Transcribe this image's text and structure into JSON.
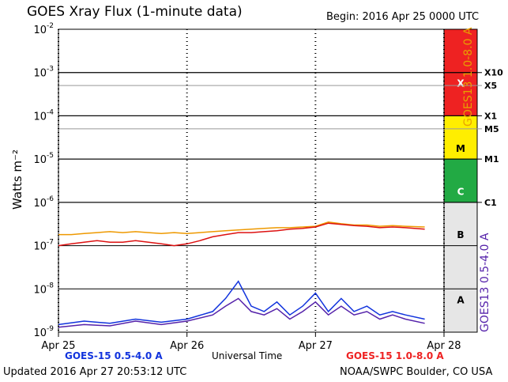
{
  "header": {
    "title": "GOES Xray Flux (1-minute data)",
    "begin": "Begin:  2016 Apr 25 0000 UTC"
  },
  "footer": {
    "updated": "Updated 2016 Apr 27 20:53:12 UTC",
    "credit": "NOAA/SWPC Boulder, CO USA",
    "xlabel": "Universal Time",
    "legend_short": "GOES-15 0.5-4.0 A",
    "legend_long": "GOES-15 1.0-8.0 A"
  },
  "side": {
    "right_long_label": "GOES13 1.0-8.0 A",
    "right_short_label": "GOES13 0.5-4.0 A"
  },
  "colors": {
    "x_class": "#ee2222",
    "m_class": "#ffee00",
    "c_class": "#22aa44",
    "ab_class": "#e6e6e6",
    "goes15_short": "#1133dd",
    "goes15_long": "#dd1111",
    "goes13_long": "#ee9900",
    "goes13_short": "#5522aa"
  },
  "chart_data": {
    "type": "line",
    "title": "GOES Xray Flux (1-minute data)",
    "xlabel": "Universal Time",
    "ylabel": "Watts m⁻²",
    "yscale": "log",
    "ylim": [
      1e-09,
      0.01
    ],
    "y_ticks": [
      {
        "exp": "-2",
        "value": 0.01
      },
      {
        "exp": "-3",
        "value": 0.001
      },
      {
        "exp": "-4",
        "value": 0.0001
      },
      {
        "exp": "-5",
        "value": 1e-05
      },
      {
        "exp": "-6",
        "value": 1e-06
      },
      {
        "exp": "-7",
        "value": 1e-07
      },
      {
        "exp": "-8",
        "value": 1e-08
      },
      {
        "exp": "-9",
        "value": 1e-09
      }
    ],
    "x_ticks": [
      {
        "label": "Apr 25",
        "day": 0
      },
      {
        "label": "Apr 26",
        "day": 1
      },
      {
        "label": "Apr 27",
        "day": 2
      },
      {
        "label": "Apr 28",
        "day": 3
      }
    ],
    "xlim_days": [
      0,
      3
    ],
    "flare_levels": [
      {
        "label": "X10",
        "value": 0.001
      },
      {
        "label": "X5",
        "value": 0.0005
      },
      {
        "label": "X1",
        "value": 0.0001
      },
      {
        "label": "M5",
        "value": 5e-05
      },
      {
        "label": "M1",
        "value": 1e-05
      },
      {
        "label": "C1",
        "value": 1e-06
      }
    ],
    "class_bands": [
      {
        "label": "X",
        "from": 0.0001,
        "to": 0.01,
        "color": "#ee2222"
      },
      {
        "label": "M",
        "from": 1e-05,
        "to": 0.0001,
        "color": "#ffee00"
      },
      {
        "label": "C",
        "from": 1e-06,
        "to": 1e-05,
        "color": "#22aa44"
      },
      {
        "label": "B",
        "from": 1e-07,
        "to": 1e-06,
        "color": "#e6e6e6"
      },
      {
        "label": "A",
        "from": 1e-09,
        "to": 1e-07,
        "color": "#e6e6e6"
      }
    ],
    "series": [
      {
        "name": "GOES13 1.0-8.0 A",
        "color": "#ee9900",
        "day": [
          0,
          0.1,
          0.2,
          0.3,
          0.4,
          0.5,
          0.6,
          0.7,
          0.8,
          0.9,
          1.0,
          1.1,
          1.2,
          1.3,
          1.4,
          1.5,
          1.6,
          1.7,
          1.8,
          1.9,
          2.0,
          2.1,
          2.2,
          2.3,
          2.4,
          2.5,
          2.6,
          2.7,
          2.85
        ],
        "flux": [
          1.8e-07,
          1.8e-07,
          1.9e-07,
          2e-07,
          2.1e-07,
          2e-07,
          2.1e-07,
          2e-07,
          1.9e-07,
          2e-07,
          1.9e-07,
          2e-07,
          2.1e-07,
          2.2e-07,
          2.3e-07,
          2.4e-07,
          2.5e-07,
          2.6e-07,
          2.6e-07,
          2.7e-07,
          2.8e-07,
          3.5e-07,
          3.2e-07,
          3e-07,
          3e-07,
          2.8e-07,
          2.9e-07,
          2.8e-07,
          2.7e-07
        ]
      },
      {
        "name": "GOES-15 1.0-8.0 A",
        "color": "#dd1111",
        "day": [
          0,
          0.1,
          0.2,
          0.3,
          0.4,
          0.5,
          0.6,
          0.7,
          0.8,
          0.9,
          1.0,
          1.1,
          1.2,
          1.3,
          1.4,
          1.5,
          1.6,
          1.7,
          1.8,
          1.9,
          2.0,
          2.1,
          2.2,
          2.3,
          2.4,
          2.5,
          2.6,
          2.7,
          2.85
        ],
        "flux": [
          1e-07,
          1.1e-07,
          1.2e-07,
          1.3e-07,
          1.2e-07,
          1.2e-07,
          1.3e-07,
          1.2e-07,
          1.1e-07,
          1e-07,
          1.1e-07,
          1.3e-07,
          1.6e-07,
          1.8e-07,
          2e-07,
          2e-07,
          2.1e-07,
          2.2e-07,
          2.4e-07,
          2.5e-07,
          2.7e-07,
          3.3e-07,
          3.1e-07,
          2.9e-07,
          2.8e-07,
          2.6e-07,
          2.7e-07,
          2.6e-07,
          2.4e-07
        ]
      },
      {
        "name": "GOES-15 0.5-4.0 A",
        "color": "#1133dd",
        "day": [
          0,
          0.2,
          0.4,
          0.6,
          0.8,
          1.0,
          1.2,
          1.3,
          1.4,
          1.5,
          1.6,
          1.7,
          1.8,
          1.9,
          2.0,
          2.1,
          2.2,
          2.3,
          2.4,
          2.5,
          2.6,
          2.7,
          2.85
        ],
        "flux": [
          1.5e-09,
          1.8e-09,
          1.6e-09,
          2e-09,
          1.7e-09,
          2e-09,
          3e-09,
          6e-09,
          1.5e-08,
          4e-09,
          3e-09,
          5e-09,
          2.5e-09,
          4e-09,
          8e-09,
          3e-09,
          6e-09,
          3e-09,
          4e-09,
          2.5e-09,
          3e-09,
          2.5e-09,
          2e-09
        ]
      },
      {
        "name": "GOES13 0.5-4.0 A",
        "color": "#5522aa",
        "day": [
          0,
          0.2,
          0.4,
          0.6,
          0.8,
          1.0,
          1.2,
          1.3,
          1.4,
          1.5,
          1.6,
          1.7,
          1.8,
          1.9,
          2.0,
          2.1,
          2.2,
          2.3,
          2.4,
          2.5,
          2.6,
          2.7,
          2.85
        ],
        "flux": [
          1.3e-09,
          1.5e-09,
          1.4e-09,
          1.8e-09,
          1.5e-09,
          1.8e-09,
          2.5e-09,
          4e-09,
          6e-09,
          3e-09,
          2.5e-09,
          3.5e-09,
          2e-09,
          3e-09,
          5e-09,
          2.5e-09,
          4e-09,
          2.5e-09,
          3e-09,
          2e-09,
          2.5e-09,
          2e-09,
          1.6e-09
        ]
      }
    ]
  }
}
